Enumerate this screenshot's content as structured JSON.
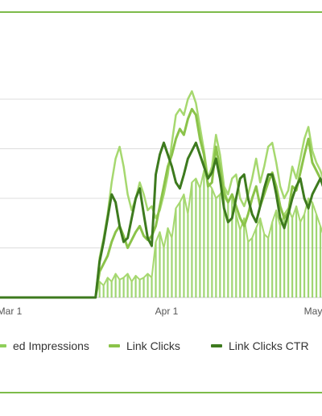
{
  "chart_data": {
    "type": "line",
    "x_tick_labels": [
      "Mar 1",
      "Apr 1",
      "May"
    ],
    "ylim": [
      0,
      100
    ],
    "grid": true,
    "legend_position": "bottom",
    "colors": {
      "impressions_bars": "#8fcf5a",
      "link_clicks": "#8bc34a",
      "link_clicks_ctr": "#3d7a1e",
      "light_line": "#a6d86f"
    },
    "legend": [
      {
        "label": "ed Impressions",
        "color": "#8fcf5a"
      },
      {
        "label": "Link Clicks",
        "color": "#8bc34a"
      },
      {
        "label": "Link Clicks CTR",
        "color": "#3d7a1e"
      }
    ],
    "series": [
      {
        "name": "ed Impressions",
        "kind": "bar",
        "values": [
          0,
          0,
          0,
          0,
          0,
          0,
          0,
          0,
          0,
          0,
          0,
          0,
          0,
          0,
          0,
          0,
          0,
          0,
          0,
          0,
          0,
          0,
          0,
          0,
          0,
          0,
          8,
          6,
          10,
          8,
          12,
          9,
          10,
          12,
          8,
          11,
          9,
          10,
          12,
          10,
          28,
          33,
          25,
          35,
          30,
          45,
          48,
          52,
          42,
          58,
          60,
          55,
          64,
          58,
          55,
          50,
          52,
          55,
          48,
          52,
          42,
          34,
          40,
          28,
          30,
          35,
          40,
          32,
          30,
          38,
          44,
          36,
          42,
          45,
          40,
          46,
          38,
          42,
          50,
          48,
          42,
          36,
          30,
          28
        ]
      },
      {
        "name": "Link Clicks",
        "kind": "line",
        "values": [
          0,
          0,
          0,
          0,
          0,
          0,
          0,
          0,
          0,
          0,
          0,
          0,
          0,
          0,
          0,
          0,
          0,
          0,
          0,
          0,
          0,
          0,
          0,
          0,
          0,
          0,
          13,
          17,
          21,
          28,
          33,
          36,
          31,
          25,
          29,
          33,
          36,
          31,
          29,
          31,
          36,
          46,
          56,
          66,
          72,
          80,
          85,
          82,
          90,
          95,
          92,
          80,
          72,
          56,
          58,
          76,
          65,
          52,
          48,
          52,
          46,
          40,
          36,
          42,
          50,
          56,
          46,
          52,
          58,
          63,
          56,
          46,
          40,
          43,
          56,
          54,
          63,
          72,
          80,
          68,
          64,
          60,
          56,
          50
        ]
      },
      {
        "name": "Link Clicks CTR",
        "kind": "line",
        "values": [
          0,
          0,
          0,
          0,
          0,
          0,
          0,
          0,
          0,
          0,
          0,
          0,
          0,
          0,
          0,
          0,
          0,
          0,
          0,
          0,
          0,
          0,
          0,
          0,
          0,
          0,
          18,
          28,
          40,
          52,
          48,
          36,
          28,
          30,
          40,
          50,
          55,
          42,
          30,
          26,
          62,
          72,
          78,
          72,
          66,
          58,
          55,
          62,
          70,
          74,
          78,
          72,
          66,
          60,
          63,
          70,
          60,
          45,
          38,
          40,
          50,
          60,
          62,
          50,
          42,
          38,
          46,
          55,
          62,
          62,
          52,
          40,
          35,
          42,
          50,
          56,
          60,
          50,
          45,
          52,
          56,
          60,
          54,
          50
        ]
      },
      {
        "name": "",
        "kind": "line",
        "values": [
          0,
          0,
          0,
          0,
          0,
          0,
          0,
          0,
          0,
          0,
          0,
          0,
          0,
          0,
          0,
          0,
          0,
          0,
          0,
          0,
          0,
          0,
          0,
          0,
          0,
          0,
          20,
          30,
          42,
          58,
          70,
          76,
          66,
          52,
          44,
          50,
          58,
          52,
          44,
          46,
          40,
          44,
          52,
          62,
          78,
          92,
          95,
          92,
          100,
          104,
          98,
          86,
          74,
          60,
          66,
          82,
          72,
          56,
          52,
          60,
          62,
          50,
          46,
          52,
          60,
          70,
          58,
          66,
          76,
          78,
          68,
          56,
          50,
          54,
          66,
          60,
          70,
          80,
          86,
          74,
          68,
          64,
          58,
          52
        ]
      },
      {
        "name": "",
        "kind": "line",
        "values": [
          0,
          0,
          0,
          0,
          0,
          0,
          0,
          0,
          0,
          0,
          0,
          0,
          0,
          0,
          0,
          0,
          0,
          0,
          0,
          0,
          0,
          0,
          0,
          0,
          0,
          0,
          8,
          6,
          10,
          8,
          12,
          9,
          10,
          12,
          8,
          11,
          9,
          10,
          12,
          10,
          28,
          33,
          25,
          35,
          30,
          45,
          48,
          52,
          42,
          58,
          60,
          55,
          64,
          58,
          55,
          50,
          52,
          55,
          48,
          52,
          42,
          34,
          40,
          28,
          30,
          35,
          40,
          32,
          30,
          38,
          44,
          36,
          42,
          45,
          40,
          46,
          38,
          42,
          50,
          48,
          42,
          36,
          30,
          28
        ]
      }
    ]
  }
}
